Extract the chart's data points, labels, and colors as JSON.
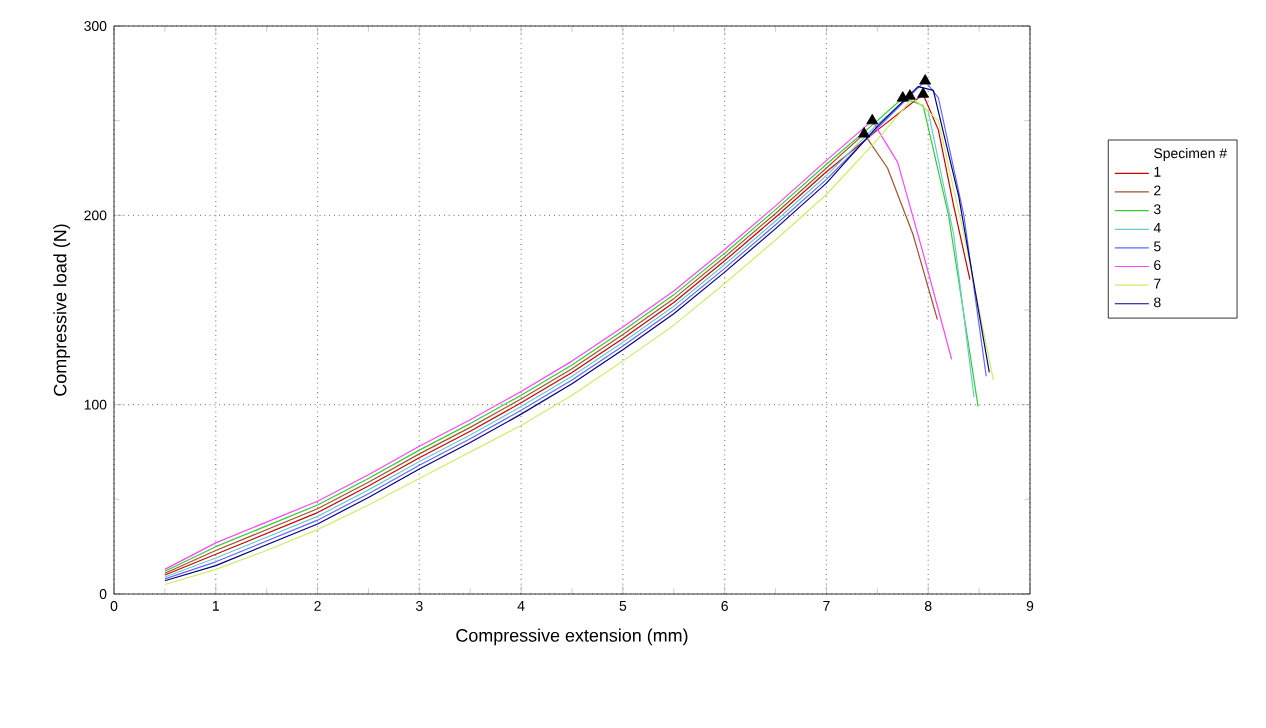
{
  "chart_data": {
    "type": "line",
    "xlabel": "Compressive extension (mm)",
    "ylabel": "Compressive load (N)",
    "legend_title": "Specimen #",
    "legend": "right",
    "grid": true,
    "xlim": [
      0,
      9
    ],
    "ylim": [
      0,
      300
    ],
    "xticks": [
      0,
      1,
      2,
      3,
      4,
      5,
      6,
      7,
      8,
      9
    ],
    "yticks": [
      0,
      100,
      200,
      300
    ],
    "series": [
      {
        "name": "1",
        "color": "#cc0000",
        "x": [
          0.5,
          1,
          1.5,
          2,
          2.5,
          3,
          3.5,
          4,
          4.5,
          5,
          5.5,
          6,
          6.5,
          7,
          7.5,
          7.95,
          8.1,
          8.25,
          8.41
        ],
        "values": [
          10,
          21,
          32,
          43,
          57,
          72,
          86,
          101,
          117,
          135,
          154,
          176,
          199,
          223,
          245,
          264,
          245,
          205,
          166
        ]
      },
      {
        "name": "2",
        "color": "#a0522d",
        "x": [
          0.5,
          1,
          1.5,
          2,
          2.5,
          3,
          3.5,
          4,
          4.5,
          5,
          5.5,
          6,
          6.5,
          7,
          7.37,
          7.6,
          7.85,
          8.09
        ],
        "values": [
          11,
          23,
          34,
          45,
          59,
          74,
          88,
          103,
          119,
          137,
          156,
          178,
          201,
          225,
          243,
          225,
          190,
          145
        ]
      },
      {
        "name": "3",
        "color": "#33cc33",
        "x": [
          0.5,
          1,
          1.5,
          2,
          2.5,
          3,
          3.5,
          4,
          4.5,
          5,
          5.5,
          6,
          6.5,
          7,
          7.5,
          7.75,
          7.95,
          8.2,
          8.49
        ],
        "values": [
          12,
          25,
          36,
          47,
          61,
          76,
          90,
          105,
          121,
          139,
          158,
          180,
          203,
          227,
          250,
          262,
          258,
          200,
          99
        ]
      },
      {
        "name": "4",
        "color": "#66cccc",
        "x": [
          0.5,
          1,
          1.5,
          2,
          2.5,
          3,
          3.5,
          4,
          4.5,
          5,
          5.5,
          6,
          6.5,
          7,
          7.5,
          7.82,
          8,
          8.25,
          8.45
        ],
        "values": [
          9,
          19,
          30,
          41,
          55,
          70,
          84,
          99,
          115,
          133,
          152,
          174,
          197,
          221,
          248,
          263,
          255,
          190,
          104
        ]
      },
      {
        "name": "5",
        "color": "#6666ff",
        "x": [
          0.5,
          1,
          1.5,
          2,
          2.5,
          3,
          3.5,
          4,
          4.5,
          5,
          5.5,
          6,
          6.5,
          7,
          7.5,
          7.97,
          8.1,
          8.35,
          8.57
        ],
        "values": [
          8,
          17,
          28,
          39,
          53,
          68,
          82,
          97,
          113,
          131,
          150,
          172,
          195,
          219,
          246,
          271,
          262,
          200,
          115
        ]
      },
      {
        "name": "6",
        "color": "#ff44ff",
        "x": [
          0.5,
          1,
          1.5,
          2,
          2.5,
          3,
          3.5,
          4,
          4.5,
          5,
          5.5,
          6,
          6.5,
          7,
          7.45,
          7.7,
          7.95,
          8.23
        ],
        "values": [
          13,
          27,
          38,
          49,
          63,
          78,
          92,
          107,
          123,
          141,
          160,
          182,
          205,
          229,
          250,
          228,
          180,
          124
        ]
      },
      {
        "name": "7",
        "color": "#ccee66",
        "x": [
          0.5,
          1,
          1.5,
          2,
          2.5,
          3,
          3.5,
          4,
          4.5,
          5,
          5.5,
          6,
          6.5,
          7,
          7.5,
          7.85,
          8.1,
          8.35,
          8.64
        ],
        "values": [
          5,
          13,
          23,
          34,
          47,
          61,
          75,
          89,
          105,
          123,
          142,
          164,
          187,
          211,
          240,
          262,
          250,
          190,
          113
        ]
      },
      {
        "name": "8",
        "color": "#000080",
        "x": [
          0.5,
          1,
          1.5,
          2,
          2.5,
          3,
          3.5,
          4,
          4.5,
          5,
          5.5,
          6,
          6.5,
          7,
          7.5,
          7.9,
          8.05,
          8.3,
          8.6
        ],
        "values": [
          7,
          15,
          26,
          37,
          51,
          66,
          80,
          95,
          111,
          129,
          148,
          170,
          193,
          217,
          247,
          268,
          266,
          210,
          117
        ]
      },
      {
        "type": "scatter",
        "marker": "triangle",
        "color": "#000000",
        "x": [
          7.37,
          7.45,
          7.75,
          7.82,
          7.95,
          7.97
        ],
        "values": [
          243,
          250,
          262,
          263,
          264,
          271
        ]
      }
    ]
  }
}
